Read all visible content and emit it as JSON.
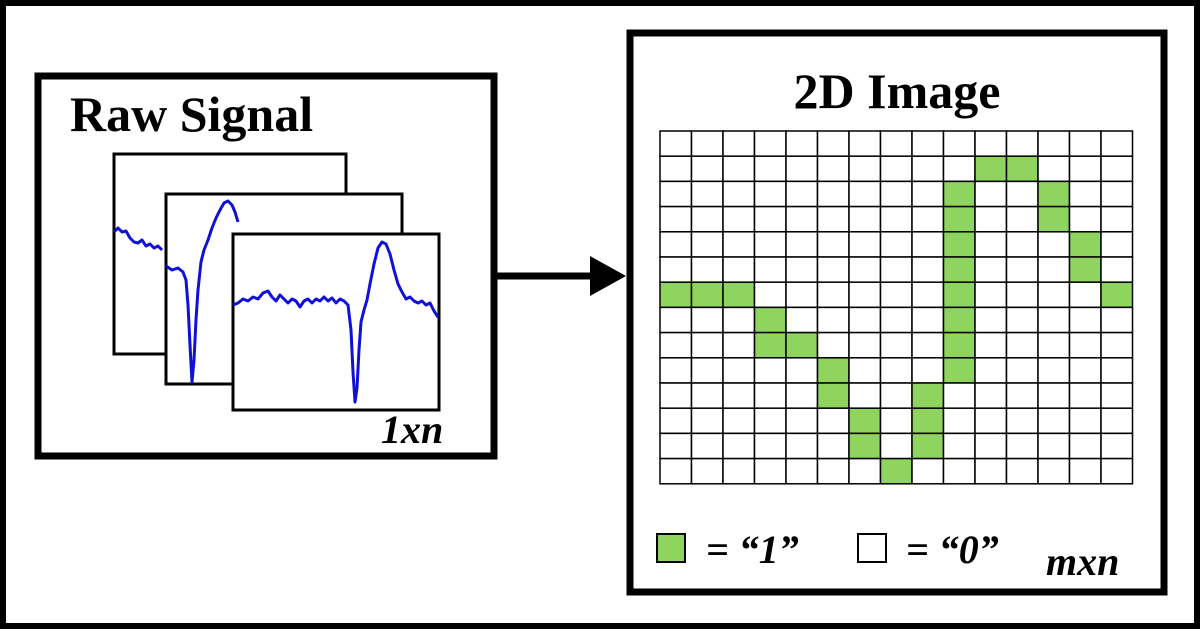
{
  "raw_panel": {
    "title": "Raw Signal",
    "dimension_label": "1xn",
    "trace_color": "#1010d8"
  },
  "image_panel": {
    "title": "2D Image",
    "dimension_label": "mxn",
    "grid": {
      "rows": 14,
      "cols": 15,
      "filled_color": "#8fd45e",
      "empty_color": "#ffffff",
      "filled_cells": [
        [
          1,
          10
        ],
        [
          1,
          11
        ],
        [
          2,
          9
        ],
        [
          2,
          12
        ],
        [
          3,
          9
        ],
        [
          3,
          12
        ],
        [
          4,
          9
        ],
        [
          4,
          13
        ],
        [
          5,
          9
        ],
        [
          5,
          13
        ],
        [
          6,
          0
        ],
        [
          6,
          1
        ],
        [
          6,
          2
        ],
        [
          6,
          9
        ],
        [
          6,
          14
        ],
        [
          7,
          3
        ],
        [
          7,
          9
        ],
        [
          8,
          3
        ],
        [
          8,
          4
        ],
        [
          8,
          9
        ],
        [
          9,
          5
        ],
        [
          9,
          9
        ],
        [
          10,
          5
        ],
        [
          10,
          8
        ],
        [
          11,
          6
        ],
        [
          11,
          8
        ],
        [
          12,
          6
        ],
        [
          12,
          8
        ],
        [
          13,
          7
        ]
      ]
    },
    "legend": {
      "one_label": "= “1”",
      "zero_label": "= “0”"
    }
  },
  "arrow": {
    "color": "#000000"
  }
}
